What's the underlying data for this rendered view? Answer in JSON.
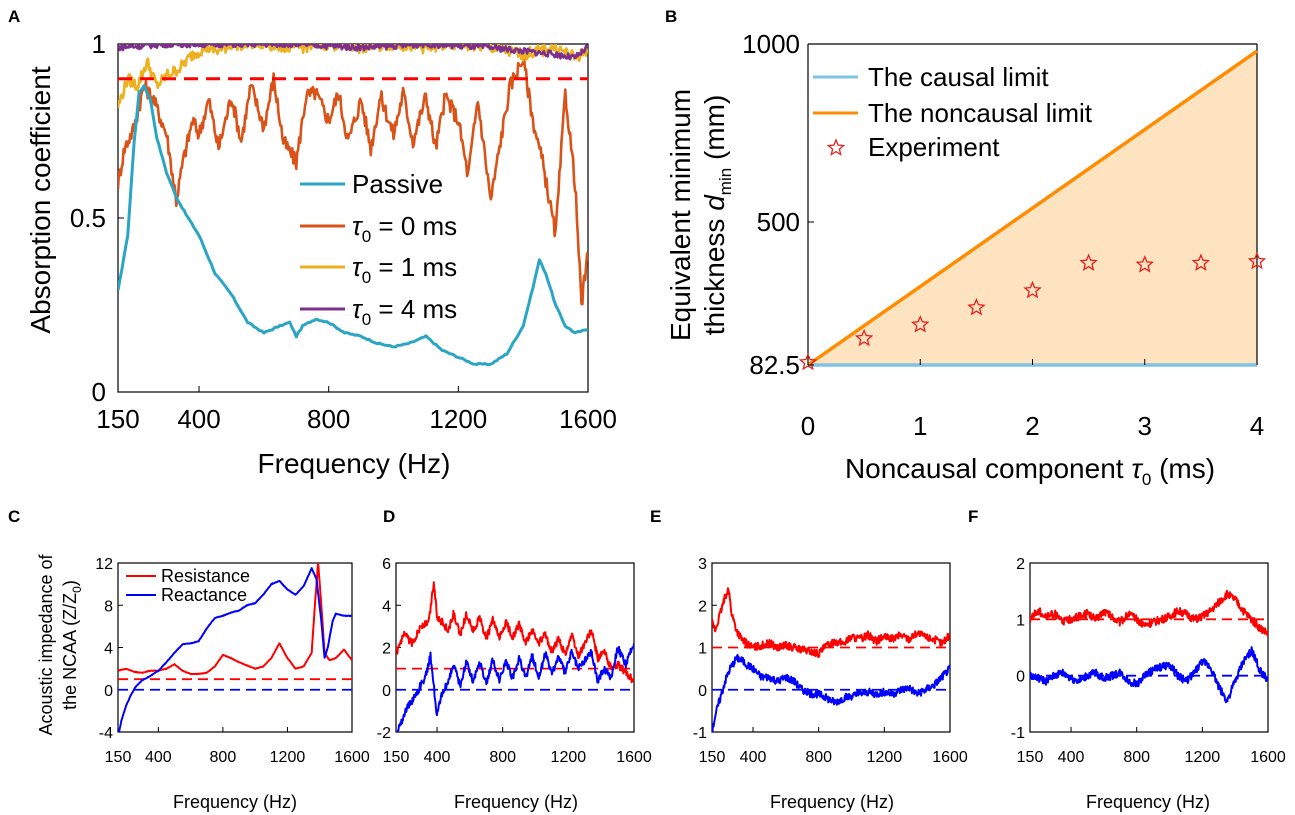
{
  "colors": {
    "passive": "#2aa6c4",
    "tau0": "#d95319",
    "tau1": "#edb120",
    "tau4": "#7e2f8e",
    "causal": "#7ec3e3",
    "noncausal": "#ff8c00",
    "fill": "#fde3c0",
    "experiment": "#e8201a",
    "resistance": "#ff0000",
    "reactance": "#0000ff"
  },
  "panels": {
    "A": {
      "label": "A",
      "xlabel": "Frequency (Hz)",
      "ylabel": "Absorption coefficient",
      "xticks": [
        "150",
        "400",
        "800",
        "1200",
        "1600"
      ],
      "yticks": [
        "0",
        "0.5",
        "1"
      ],
      "legend": [
        "Passive",
        "0 ms",
        "1 ms",
        "4 ms"
      ],
      "tau_symbol": "τ",
      "tau_sub": "0",
      "eq": " = "
    },
    "B": {
      "label": "B",
      "xlabel": "Noncausal component",
      "xlabel_sym": "τ",
      "xlabel_sub": "0",
      "xlabel_unit": " (ms)",
      "ylabel_line1": "Equivalent minimum",
      "ylabel_line2": "thickness",
      "ylabel_sym": "d",
      "ylabel_sub": "min",
      "ylabel_unit": " (mm)",
      "xticks": [
        "0",
        "1",
        "2",
        "3",
        "4"
      ],
      "yticks": [
        "82.5",
        "500",
        "1000"
      ],
      "legend": [
        "The causal limit",
        "The noncausal limit",
        "Experiment"
      ]
    },
    "C": {
      "label": "C",
      "ylabel_line1": "Acoustic impedance of",
      "ylabel_line2": "the NCAA (Z/Z",
      "ylabel_sub": "0",
      "ylabel_close": ")",
      "xlabel": "Frequency (Hz)",
      "xticks": [
        "150",
        "400",
        "800",
        "1200",
        "1600"
      ],
      "yticks": [
        "-4",
        "0",
        "4",
        "8",
        "12"
      ],
      "legend": [
        "Resistance",
        "Reactance"
      ]
    },
    "D": {
      "label": "D",
      "xlabel": "Frequency (Hz)",
      "xticks": [
        "150",
        "400",
        "800",
        "1200",
        "1600"
      ],
      "yticks": [
        "-2",
        "0",
        "2",
        "4",
        "6"
      ]
    },
    "E": {
      "label": "E",
      "xlabel": "Frequency (Hz)",
      "xticks": [
        "150",
        "400",
        "800",
        "1200",
        "1600"
      ],
      "yticks": [
        "-1",
        "0",
        "1",
        "2",
        "3"
      ]
    },
    "F": {
      "label": "F",
      "xlabel": "Frequency (Hz)",
      "xticks": [
        "150",
        "400",
        "800",
        "1200",
        "1600"
      ],
      "yticks": [
        "-1",
        "0",
        "1",
        "2"
      ]
    }
  },
  "chart_data": [
    {
      "panel": "A",
      "type": "line",
      "xlim": [
        150,
        1600
      ],
      "ylim": [
        0,
        1
      ],
      "reference_line": 0.9,
      "series": [
        {
          "name": "Passive",
          "x": [
            150,
            180,
            200,
            215,
            230,
            250,
            270,
            300,
            330,
            360,
            400,
            450,
            500,
            550,
            600,
            650,
            680,
            700,
            720,
            760,
            800,
            850,
            900,
            950,
            1000,
            1050,
            1100,
            1150,
            1200,
            1250,
            1300,
            1350,
            1400,
            1430,
            1450,
            1470,
            1500,
            1530,
            1560,
            1600
          ],
          "y": [
            0.29,
            0.45,
            0.72,
            0.86,
            0.88,
            0.84,
            0.73,
            0.63,
            0.56,
            0.51,
            0.45,
            0.34,
            0.28,
            0.2,
            0.17,
            0.19,
            0.2,
            0.16,
            0.19,
            0.21,
            0.2,
            0.17,
            0.16,
            0.14,
            0.13,
            0.14,
            0.16,
            0.12,
            0.1,
            0.08,
            0.08,
            0.11,
            0.19,
            0.3,
            0.38,
            0.34,
            0.25,
            0.19,
            0.17,
            0.18
          ]
        },
        {
          "name": "0 ms",
          "x": [
            150,
            170,
            200,
            230,
            260,
            300,
            330,
            350,
            380,
            400,
            430,
            460,
            500,
            530,
            560,
            600,
            630,
            660,
            700,
            730,
            760,
            800,
            830,
            860,
            900,
            930,
            960,
            1000,
            1030,
            1060,
            1100,
            1130,
            1160,
            1200,
            1230,
            1260,
            1300,
            1330,
            1360,
            1400,
            1430,
            1460,
            1500,
            1530,
            1560,
            1580,
            1600
          ],
          "y": [
            0.6,
            0.7,
            0.76,
            0.88,
            0.84,
            0.74,
            0.55,
            0.66,
            0.78,
            0.74,
            0.84,
            0.7,
            0.85,
            0.72,
            0.88,
            0.76,
            0.9,
            0.72,
            0.66,
            0.85,
            0.86,
            0.78,
            0.86,
            0.72,
            0.84,
            0.7,
            0.85,
            0.74,
            0.86,
            0.72,
            0.85,
            0.7,
            0.85,
            0.78,
            0.62,
            0.84,
            0.55,
            0.72,
            0.88,
            0.96,
            0.78,
            0.66,
            0.45,
            0.86,
            0.6,
            0.25,
            0.4
          ]
        },
        {
          "name": "1 ms",
          "x": [
            150,
            180,
            210,
            240,
            270,
            300,
            340,
            380,
            420,
            460,
            500,
            600,
            700,
            800,
            900,
            1000,
            1100,
            1200,
            1300,
            1400,
            1500,
            1560,
            1600
          ],
          "y": [
            0.82,
            0.9,
            0.88,
            0.95,
            0.88,
            0.91,
            0.93,
            0.97,
            0.99,
            0.98,
            1.0,
            1.0,
            0.99,
            1.0,
            0.99,
            1.0,
            0.99,
            1.0,
            0.99,
            0.97,
            0.99,
            0.96,
            0.98
          ]
        },
        {
          "name": "4 ms",
          "x": [
            150,
            300,
            500,
            700,
            900,
            1100,
            1300,
            1400,
            1500,
            1560,
            1600
          ],
          "y": [
            0.99,
            1.0,
            1.0,
            1.0,
            0.99,
            1.0,
            0.99,
            0.98,
            0.97,
            0.96,
            0.99
          ]
        }
      ]
    },
    {
      "panel": "B",
      "type": "scatter",
      "xlim": [
        0,
        4
      ],
      "yticks_values": [
        82.5,
        500,
        1000
      ],
      "series": [
        {
          "name": "The causal limit",
          "x": [
            0,
            4
          ],
          "y": [
            82.5,
            82.5
          ]
        },
        {
          "name": "The noncausal limit",
          "x": [
            0,
            4
          ],
          "y": [
            82.5,
            980
          ]
        },
        {
          "name": "Experiment",
          "x": [
            0,
            0.5,
            1,
            1.5,
            2,
            2.5,
            3,
            3.5,
            4
          ],
          "y": [
            90,
            160,
            200,
            250,
            300,
            380,
            375,
            380,
            385
          ]
        }
      ]
    },
    {
      "panel": "C",
      "type": "line",
      "xlim": [
        150,
        1600
      ],
      "ylim": [
        -4,
        12
      ],
      "reference_lines": {
        "resistance": 1,
        "reactance": 0
      },
      "series": [
        {
          "name": "Resistance",
          "x": [
            150,
            200,
            250,
            300,
            350,
            400,
            450,
            500,
            550,
            600,
            650,
            700,
            750,
            800,
            850,
            900,
            950,
            1000,
            1050,
            1100,
            1150,
            1200,
            1250,
            1300,
            1350,
            1370,
            1390,
            1410,
            1430,
            1460,
            1500,
            1550,
            1600
          ],
          "y": [
            1.8,
            2.0,
            1.7,
            1.6,
            1.8,
            1.8,
            2.0,
            2.4,
            1.8,
            1.5,
            1.5,
            1.6,
            2.2,
            3.3,
            3.0,
            2.6,
            2.3,
            2.0,
            2.2,
            3.0,
            4.4,
            3.0,
            2.0,
            2.2,
            3.5,
            8.0,
            12.0,
            8.0,
            3.5,
            2.8,
            3.0,
            3.8,
            2.8
          ]
        },
        {
          "name": "Reactance",
          "x": [
            150,
            170,
            200,
            230,
            260,
            300,
            350,
            400,
            450,
            500,
            550,
            600,
            650,
            700,
            750,
            800,
            850,
            900,
            950,
            1000,
            1050,
            1100,
            1150,
            1200,
            1250,
            1300,
            1350,
            1380,
            1410,
            1430,
            1450,
            1480,
            1500,
            1550,
            1600
          ],
          "y": [
            -4.5,
            -3.0,
            -1.5,
            -0.5,
            0.3,
            0.9,
            1.3,
            1.8,
            2.6,
            3.5,
            4.3,
            4.4,
            4.6,
            5.8,
            6.8,
            7.0,
            7.3,
            7.5,
            8.0,
            8.2,
            9.0,
            10.0,
            10.3,
            9.5,
            9.0,
            9.8,
            11.5,
            10.5,
            6.5,
            3.0,
            4.0,
            6.5,
            7.2,
            7.0,
            7.0
          ]
        }
      ]
    },
    {
      "panel": "D",
      "type": "line",
      "xlim": [
        150,
        1600
      ],
      "ylim": [
        -2,
        6
      ],
      "reference_lines": {
        "resistance": 1,
        "reactance": 0
      },
      "series": [
        {
          "name": "Resistance",
          "x": [
            150,
            200,
            250,
            300,
            350,
            380,
            400,
            430,
            470,
            500,
            540,
            580,
            620,
            660,
            700,
            740,
            780,
            820,
            860,
            900,
            940,
            980,
            1020,
            1060,
            1100,
            1140,
            1180,
            1220,
            1260,
            1300,
            1340,
            1380,
            1420,
            1460,
            1500,
            1550,
            1600
          ],
          "y": [
            1.7,
            2.6,
            2.2,
            3.0,
            3.2,
            5.1,
            3.5,
            3.2,
            2.8,
            3.6,
            2.6,
            3.6,
            2.8,
            3.4,
            2.4,
            3.3,
            2.4,
            3.2,
            2.5,
            3.1,
            2.2,
            2.8,
            2.2,
            2.6,
            1.8,
            2.4,
            1.7,
            2.6,
            1.6,
            2.2,
            2.8,
            1.5,
            1.8,
            1.0,
            1.2,
            0.8,
            0.4
          ]
        },
        {
          "name": "Reactance",
          "x": [
            150,
            180,
            220,
            260,
            300,
            330,
            360,
            400,
            430,
            470,
            500,
            540,
            580,
            620,
            660,
            700,
            740,
            780,
            820,
            860,
            900,
            940,
            980,
            1020,
            1060,
            1100,
            1140,
            1180,
            1220,
            1260,
            1300,
            1340,
            1380,
            1420,
            1460,
            1500,
            1550,
            1600
          ],
          "y": [
            -2.0,
            -1.6,
            -0.8,
            -0.4,
            0.2,
            0.6,
            1.6,
            -1.2,
            -0.2,
            0.4,
            1.2,
            0.2,
            1.3,
            0.4,
            1.3,
            0.3,
            1.4,
            0.4,
            1.4,
            0.5,
            1.5,
            0.5,
            1.6,
            0.6,
            1.7,
            0.7,
            1.6,
            0.8,
            1.8,
            1.0,
            1.4,
            1.8,
            0.4,
            1.0,
            0.6,
            2.0,
            1.2,
            2.2
          ]
        }
      ]
    },
    {
      "panel": "E",
      "type": "line",
      "xlim": [
        150,
        1600
      ],
      "ylim": [
        -1,
        3
      ],
      "reference_lines": {
        "resistance": 1,
        "reactance": 0
      },
      "series": [
        {
          "name": "Resistance",
          "x": [
            150,
            170,
            200,
            230,
            250,
            270,
            300,
            330,
            360,
            400,
            450,
            500,
            550,
            600,
            650,
            700,
            750,
            800,
            850,
            900,
            950,
            1000,
            1050,
            1100,
            1150,
            1200,
            1250,
            1300,
            1350,
            1400,
            1450,
            1500,
            1550,
            1600
          ],
          "y": [
            1.6,
            1.4,
            1.8,
            2.2,
            2.4,
            1.8,
            1.4,
            1.2,
            1.1,
            1.0,
            1.05,
            1.1,
            1.0,
            1.05,
            1.0,
            0.95,
            0.9,
            0.85,
            1.05,
            1.15,
            1.1,
            1.25,
            1.2,
            1.3,
            1.15,
            1.25,
            1.2,
            1.3,
            1.2,
            1.35,
            1.25,
            1.2,
            1.1,
            1.3
          ]
        },
        {
          "name": "Reactance",
          "x": [
            150,
            170,
            200,
            230,
            260,
            300,
            330,
            360,
            400,
            450,
            500,
            550,
            600,
            650,
            700,
            750,
            800,
            850,
            900,
            950,
            1000,
            1050,
            1100,
            1150,
            1200,
            1250,
            1300,
            1350,
            1400,
            1450,
            1500,
            1550,
            1600
          ],
          "y": [
            -1.0,
            -0.6,
            -0.2,
            0.2,
            0.5,
            0.75,
            0.7,
            0.6,
            0.5,
            0.3,
            0.3,
            0.2,
            0.3,
            0.2,
            0.0,
            -0.1,
            -0.1,
            -0.2,
            -0.3,
            -0.2,
            -0.15,
            -0.1,
            -0.05,
            -0.1,
            -0.05,
            -0.1,
            0.0,
            0.05,
            -0.1,
            0.0,
            0.1,
            0.3,
            0.5
          ]
        }
      ]
    },
    {
      "panel": "F",
      "type": "line",
      "xlim": [
        150,
        1600
      ],
      "ylim": [
        -1,
        2
      ],
      "reference_lines": {
        "resistance": 1,
        "reactance": 0
      },
      "series": [
        {
          "name": "Resistance",
          "x": [
            150,
            200,
            250,
            300,
            350,
            400,
            450,
            500,
            550,
            600,
            650,
            700,
            750,
            800,
            850,
            900,
            950,
            1000,
            1050,
            1100,
            1150,
            1200,
            1250,
            1300,
            1350,
            1400,
            1450,
            1500,
            1550,
            1600
          ],
          "y": [
            1.0,
            1.15,
            1.05,
            1.1,
            0.95,
            1.0,
            1.05,
            1.1,
            1.0,
            1.15,
            1.05,
            0.95,
            1.1,
            1.0,
            0.9,
            0.95,
            1.0,
            1.05,
            1.15,
            1.1,
            1.0,
            1.05,
            1.15,
            1.3,
            1.45,
            1.35,
            1.15,
            1.0,
            0.85,
            0.75
          ]
        },
        {
          "name": "Reactance",
          "x": [
            150,
            200,
            250,
            300,
            350,
            400,
            450,
            500,
            550,
            600,
            650,
            700,
            750,
            800,
            850,
            900,
            950,
            1000,
            1050,
            1100,
            1150,
            1200,
            1250,
            1300,
            1350,
            1400,
            1450,
            1500,
            1550,
            1600
          ],
          "y": [
            0.0,
            -0.05,
            -0.1,
            0.0,
            0.05,
            -0.05,
            -0.1,
            0.0,
            0.05,
            -0.05,
            0.0,
            0.05,
            -0.1,
            -0.15,
            0.0,
            0.1,
            0.15,
            0.2,
            0.0,
            -0.1,
            0.05,
            0.25,
            0.15,
            -0.2,
            -0.45,
            -0.1,
            0.25,
            0.45,
            0.1,
            -0.1
          ]
        }
      ]
    }
  ]
}
